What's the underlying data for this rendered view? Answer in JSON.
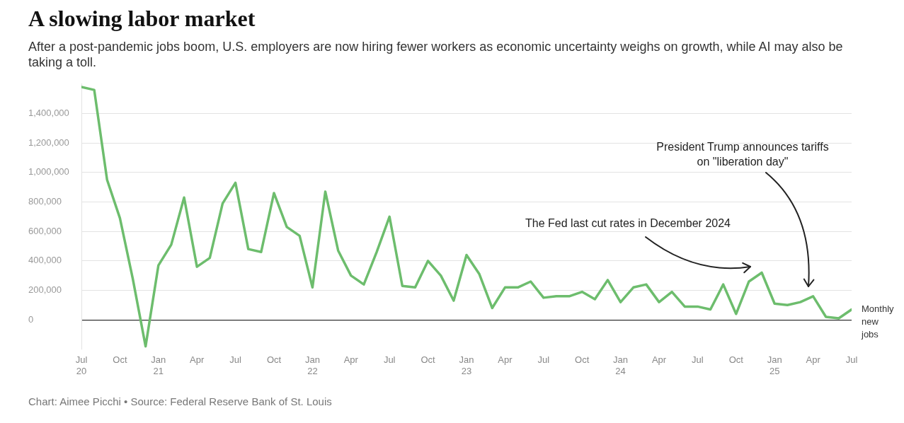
{
  "chart_data": {
    "type": "line",
    "title": "A slowing labor market",
    "subtitle": "After a post-pandemic jobs boom, U.S. employers are now hiring fewer workers as economic uncertainty weighs on growth, while AI may also be taking a toll.",
    "x": [
      "2020-07",
      "2020-08",
      "2020-09",
      "2020-10",
      "2020-11",
      "2020-12",
      "2021-01",
      "2021-02",
      "2021-03",
      "2021-04",
      "2021-05",
      "2021-06",
      "2021-07",
      "2021-08",
      "2021-09",
      "2021-10",
      "2021-11",
      "2021-12",
      "2022-01",
      "2022-02",
      "2022-03",
      "2022-04",
      "2022-05",
      "2022-06",
      "2022-07",
      "2022-08",
      "2022-09",
      "2022-10",
      "2022-11",
      "2022-12",
      "2023-01",
      "2023-02",
      "2023-03",
      "2023-04",
      "2023-05",
      "2023-06",
      "2023-07",
      "2023-08",
      "2023-09",
      "2023-10",
      "2023-11",
      "2023-12",
      "2024-01",
      "2024-02",
      "2024-03",
      "2024-04",
      "2024-05",
      "2024-06",
      "2024-07",
      "2024-08",
      "2024-09",
      "2024-10",
      "2024-11",
      "2024-12",
      "2025-01",
      "2025-02",
      "2025-03",
      "2025-04",
      "2025-05",
      "2025-06",
      "2025-07"
    ],
    "series": [
      {
        "name": "Monthly new jobs",
        "color": "#6dbd6d",
        "values": [
          1580000,
          1560000,
          950000,
          690000,
          280000,
          -180000,
          370000,
          510000,
          830000,
          360000,
          420000,
          790000,
          930000,
          480000,
          460000,
          860000,
          630000,
          570000,
          220000,
          870000,
          470000,
          300000,
          240000,
          460000,
          700000,
          230000,
          220000,
          400000,
          300000,
          130000,
          440000,
          310000,
          80000,
          220000,
          220000,
          260000,
          150000,
          160000,
          160000,
          190000,
          140000,
          270000,
          120000,
          220000,
          240000,
          120000,
          190000,
          90000,
          90000,
          70000,
          240000,
          40000,
          260000,
          320000,
          110000,
          100000,
          120000,
          160000,
          20000,
          10000,
          70000
        ]
      }
    ],
    "xlim": [
      "2020-07",
      "2025-07"
    ],
    "xticks": [
      {
        "value": "2020-07",
        "label": "Jul 20"
      },
      {
        "value": "2020-10",
        "label": "Oct"
      },
      {
        "value": "2021-01",
        "label": "Jan 21"
      },
      {
        "value": "2021-04",
        "label": "Apr"
      },
      {
        "value": "2021-07",
        "label": "Jul"
      },
      {
        "value": "2021-10",
        "label": "Oct"
      },
      {
        "value": "2022-01",
        "label": "Jan 22"
      },
      {
        "value": "2022-04",
        "label": "Apr"
      },
      {
        "value": "2022-07",
        "label": "Jul"
      },
      {
        "value": "2022-10",
        "label": "Oct"
      },
      {
        "value": "2023-01",
        "label": "Jan 23"
      },
      {
        "value": "2023-04",
        "label": "Apr"
      },
      {
        "value": "2023-07",
        "label": "Jul"
      },
      {
        "value": "2023-10",
        "label": "Oct"
      },
      {
        "value": "2024-01",
        "label": "Jan 24"
      },
      {
        "value": "2024-04",
        "label": "Apr"
      },
      {
        "value": "2024-07",
        "label": "Jul"
      },
      {
        "value": "2024-10",
        "label": "Oct"
      },
      {
        "value": "2025-01",
        "label": "Jan 25"
      },
      {
        "value": "2025-04",
        "label": "Apr"
      },
      {
        "value": "2025-07",
        "label": "Jul"
      }
    ],
    "ylim": [
      -200000,
      1600000
    ],
    "yticks": [
      {
        "value": 0,
        "label": "0"
      },
      {
        "value": 200000,
        "label": "200,000"
      },
      {
        "value": 400000,
        "label": "400,000"
      },
      {
        "value": 600000,
        "label": "600,000"
      },
      {
        "value": 800000,
        "label": "800,000"
      },
      {
        "value": 1000000,
        "label": "1,000,000"
      },
      {
        "value": 1200000,
        "label": "1,200,000"
      },
      {
        "value": 1400000,
        "label": "1,400,000"
      }
    ],
    "grid": "y",
    "legend": false,
    "marker": "none",
    "line_style": "solid",
    "annotations": [
      "The Fed last cut rates in December 2024",
      "President Trump announces tariffs\non \"liberation day\"",
      "Chart: Aimee Picchi • Source: Federal Reserve Bank of St. Louis"
    ]
  }
}
